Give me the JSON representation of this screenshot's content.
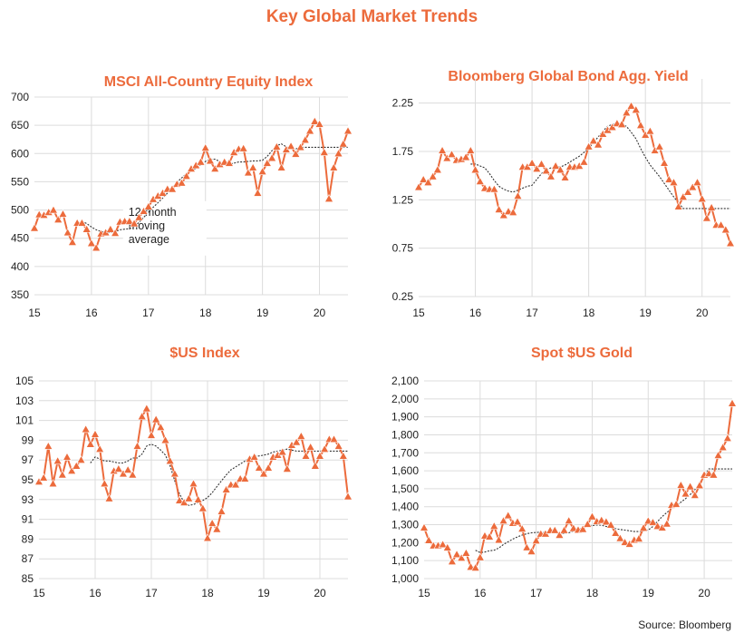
{
  "page_title": "Key Global Market Trends",
  "source": "Source: Bloomberg",
  "chart_data": [
    {
      "id": "msci",
      "type": "line",
      "title": "MSCI All-Country Equity Index",
      "xlabel": "",
      "ylabel": "",
      "x_start": 15,
      "x_step_months": 1,
      "xlim": [
        15,
        20.5
      ],
      "xticks": [
        "15",
        "16",
        "17",
        "18",
        "19",
        "20"
      ],
      "ylim": [
        350,
        700
      ],
      "yticks": [
        "350",
        "400",
        "450",
        "500",
        "550",
        "600",
        "650",
        "700"
      ],
      "ytick_values": [
        350,
        400,
        450,
        500,
        550,
        600,
        650,
        700
      ],
      "grid": true,
      "annotation": [
        "12-month",
        "moving",
        "average"
      ],
      "series": [
        {
          "name": "MSCI All-Country Equity Index",
          "marker": "triangle",
          "color": "#ec6b3c",
          "values": [
            468,
            492,
            491,
            496,
            500,
            483,
            493,
            460,
            443,
            477,
            477,
            466,
            441,
            433,
            458,
            460,
            466,
            459,
            479,
            480,
            480,
            476,
            487,
            498,
            506,
            519,
            525,
            530,
            537,
            537,
            546,
            548,
            560,
            573,
            579,
            585,
            610,
            587,
            573,
            581,
            585,
            583,
            602,
            608,
            609,
            566,
            575,
            530,
            568,
            583,
            592,
            612,
            575,
            607,
            613,
            599,
            611,
            624,
            640,
            657,
            652,
            602,
            520,
            575,
            600,
            617,
            640
          ]
        },
        {
          "name": "12-month moving average",
          "style": "dotted",
          "color": "#333333",
          "start_index": 10,
          "values": [
            480,
            476,
            470,
            465,
            462,
            460,
            460,
            462,
            465,
            466,
            467,
            470,
            478,
            487,
            496,
            505,
            513,
            521,
            530,
            540,
            549,
            557,
            564,
            569,
            574,
            580,
            586,
            590,
            590,
            586,
            580,
            581,
            583,
            585,
            585,
            586,
            587,
            587,
            588,
            595,
            605,
            614,
            617,
            612,
            608,
            608,
            611,
            611,
            611,
            611,
            611,
            611,
            611,
            611,
            611,
            611,
            611
          ]
        }
      ]
    },
    {
      "id": "bond",
      "type": "line",
      "title": "Bloomberg Global Bond Agg. Yield",
      "xlabel": "",
      "ylabel": "",
      "x_start": 15,
      "x_step_months": 1,
      "xlim": [
        15,
        20.5
      ],
      "xticks": [
        "15",
        "16",
        "17",
        "18",
        "19",
        "20"
      ],
      "ylim": [
        0.25,
        2.5
      ],
      "yticks": [
        "0.25",
        "0.75",
        "1.25",
        "1.75",
        "2.25"
      ],
      "ytick_values": [
        0.25,
        0.75,
        1.25,
        1.75,
        2.25
      ],
      "grid": true,
      "series": [
        {
          "name": "Bloomberg Global Bond Agg. Yield",
          "marker": "triangle",
          "color": "#ec6b3c",
          "values": [
            1.38,
            1.46,
            1.43,
            1.49,
            1.56,
            1.76,
            1.68,
            1.72,
            1.66,
            1.67,
            1.69,
            1.76,
            1.56,
            1.44,
            1.37,
            1.36,
            1.36,
            1.15,
            1.09,
            1.13,
            1.12,
            1.29,
            1.59,
            1.59,
            1.63,
            1.57,
            1.62,
            1.55,
            1.49,
            1.6,
            1.56,
            1.48,
            1.59,
            1.59,
            1.6,
            1.64,
            1.8,
            1.86,
            1.82,
            1.93,
            1.97,
            2.0,
            2.04,
            2.03,
            2.15,
            2.22,
            2.18,
            2.02,
            1.92,
            1.96,
            1.76,
            1.8,
            1.63,
            1.46,
            1.43,
            1.18,
            1.28,
            1.33,
            1.38,
            1.43,
            1.26,
            1.06,
            1.17,
            0.99,
            0.99,
            0.94,
            0.8
          ]
        },
        {
          "name": "12-month moving average",
          "style": "dotted",
          "color": "#333333",
          "start_index": 11,
          "values": [
            1.62,
            1.62,
            1.6,
            1.58,
            1.52,
            1.45,
            1.39,
            1.36,
            1.34,
            1.33,
            1.35,
            1.37,
            1.39,
            1.4,
            1.46,
            1.52,
            1.56,
            1.58,
            1.59,
            1.59,
            1.61,
            1.64,
            1.67,
            1.7,
            1.74,
            1.78,
            1.84,
            1.9,
            1.96,
            2.01,
            2.03,
            2.03,
            2.03,
            2.01,
            1.95,
            1.88,
            1.78,
            1.69,
            1.61,
            1.55,
            1.49,
            1.42,
            1.35,
            1.28,
            1.22,
            1.16,
            1.16,
            1.16,
            1.16,
            1.16,
            1.16,
            1.16,
            1.16,
            1.16,
            1.16,
            1.16
          ]
        }
      ]
    },
    {
      "id": "usd",
      "type": "line",
      "title": "$US Index",
      "xlabel": "",
      "ylabel": "",
      "x_start": 15,
      "x_step_months": 1,
      "xlim": [
        15,
        20.5
      ],
      "xticks": [
        "15",
        "16",
        "17",
        "18",
        "19",
        "20"
      ],
      "ylim": [
        85,
        105
      ],
      "yticks": [
        "85",
        "87",
        "89",
        "91",
        "93",
        "95",
        "97",
        "99",
        "101",
        "103",
        "105"
      ],
      "ytick_values": [
        85,
        87,
        89,
        91,
        93,
        95,
        97,
        99,
        101,
        103,
        105
      ],
      "grid": true,
      "series": [
        {
          "name": "$US Index",
          "marker": "triangle",
          "color": "#ec6b3c",
          "values": [
            94.8,
            95.2,
            98.4,
            94.6,
            96.9,
            95.5,
            97.3,
            95.9,
            96.4,
            97.0,
            100.1,
            98.6,
            99.6,
            98.1,
            94.6,
            93.1,
            95.9,
            96.1,
            95.6,
            96.0,
            95.5,
            98.4,
            101.4,
            102.2,
            99.5,
            101.1,
            100.3,
            99.0,
            96.9,
            95.6,
            92.9,
            92.7,
            93.1,
            94.6,
            93.0,
            92.1,
            89.1,
            90.6,
            90.0,
            91.8,
            94.0,
            94.5,
            94.5,
            95.1,
            95.1,
            97.1,
            97.3,
            96.2,
            95.6,
            96.2,
            97.3,
            97.5,
            97.8,
            96.1,
            98.5,
            98.8,
            99.4,
            97.4,
            98.3,
            96.4,
            97.4,
            98.1,
            99.1,
            99.1,
            98.4,
            97.4,
            93.3
          ]
        },
        {
          "name": "12-month moving average",
          "style": "dotted",
          "color": "#333333",
          "start_index": 11,
          "values": [
            96.7,
            97.3,
            97.1,
            96.9,
            96.9,
            96.8,
            96.7,
            96.7,
            96.9,
            97.2,
            97.2,
            97.6,
            98.4,
            98.6,
            98.4,
            98.0,
            97.5,
            96.4,
            94.9,
            93.6,
            92.7,
            92.4,
            92.5,
            92.7,
            92.9,
            93.2,
            93.7,
            94.3,
            94.9,
            95.5,
            96.0,
            96.3,
            96.6,
            96.9,
            97.2,
            97.4,
            97.4,
            97.5,
            97.6,
            97.8,
            97.9,
            98.0,
            98.1,
            98.0,
            97.9,
            97.9,
            97.9,
            97.9,
            97.9,
            97.9,
            97.9,
            97.9,
            97.9,
            97.9,
            97.9,
            97.9
          ]
        }
      ]
    },
    {
      "id": "gold",
      "type": "line",
      "title": "Spot $US Gold",
      "xlabel": "",
      "ylabel": "",
      "x_start": 15,
      "x_step_months": 1,
      "xlim": [
        15,
        20.5
      ],
      "xticks": [
        "15",
        "16",
        "17",
        "18",
        "19",
        "20"
      ],
      "ylim": [
        1000,
        2100
      ],
      "yticks": [
        "1,000",
        "1,100",
        "1,200",
        "1,300",
        "1,400",
        "1,500",
        "1,600",
        "1,700",
        "1,800",
        "1,900",
        "2,000",
        "2,100"
      ],
      "ytick_values": [
        1000,
        1100,
        1200,
        1300,
        1400,
        1500,
        1600,
        1700,
        1800,
        1900,
        2000,
        2100
      ],
      "grid": true,
      "series": [
        {
          "name": "Spot $US Gold",
          "marker": "triangle",
          "color": "#ec6b3c",
          "values": [
            1283,
            1213,
            1183,
            1184,
            1190,
            1172,
            1095,
            1135,
            1115,
            1142,
            1065,
            1060,
            1118,
            1238,
            1233,
            1292,
            1215,
            1322,
            1351,
            1309,
            1316,
            1277,
            1173,
            1151,
            1211,
            1249,
            1249,
            1268,
            1269,
            1242,
            1269,
            1322,
            1280,
            1271,
            1275,
            1303,
            1345,
            1318,
            1325,
            1316,
            1299,
            1253,
            1224,
            1202,
            1192,
            1215,
            1222,
            1282,
            1321,
            1313,
            1292,
            1283,
            1305,
            1409,
            1414,
            1520,
            1472,
            1512,
            1464,
            1518,
            1577,
            1585,
            1577,
            1686,
            1730,
            1781,
            1975
          ]
        },
        {
          "name": "12-month moving average",
          "style": "dotted",
          "color": "#333333",
          "start_index": 11,
          "values": [
            1158,
            1145,
            1148,
            1155,
            1158,
            1170,
            1190,
            1205,
            1220,
            1232,
            1242,
            1250,
            1255,
            1257,
            1258,
            1258,
            1258,
            1255,
            1252,
            1250,
            1255,
            1265,
            1275,
            1282,
            1290,
            1295,
            1298,
            1297,
            1290,
            1282,
            1278,
            1273,
            1270,
            1266,
            1262,
            1262,
            1265,
            1270,
            1290,
            1318,
            1345,
            1368,
            1388,
            1406,
            1425,
            1445,
            1467,
            1495,
            1530,
            1570,
            1610,
            1610,
            1610,
            1610,
            1610,
            1610
          ]
        }
      ]
    }
  ]
}
